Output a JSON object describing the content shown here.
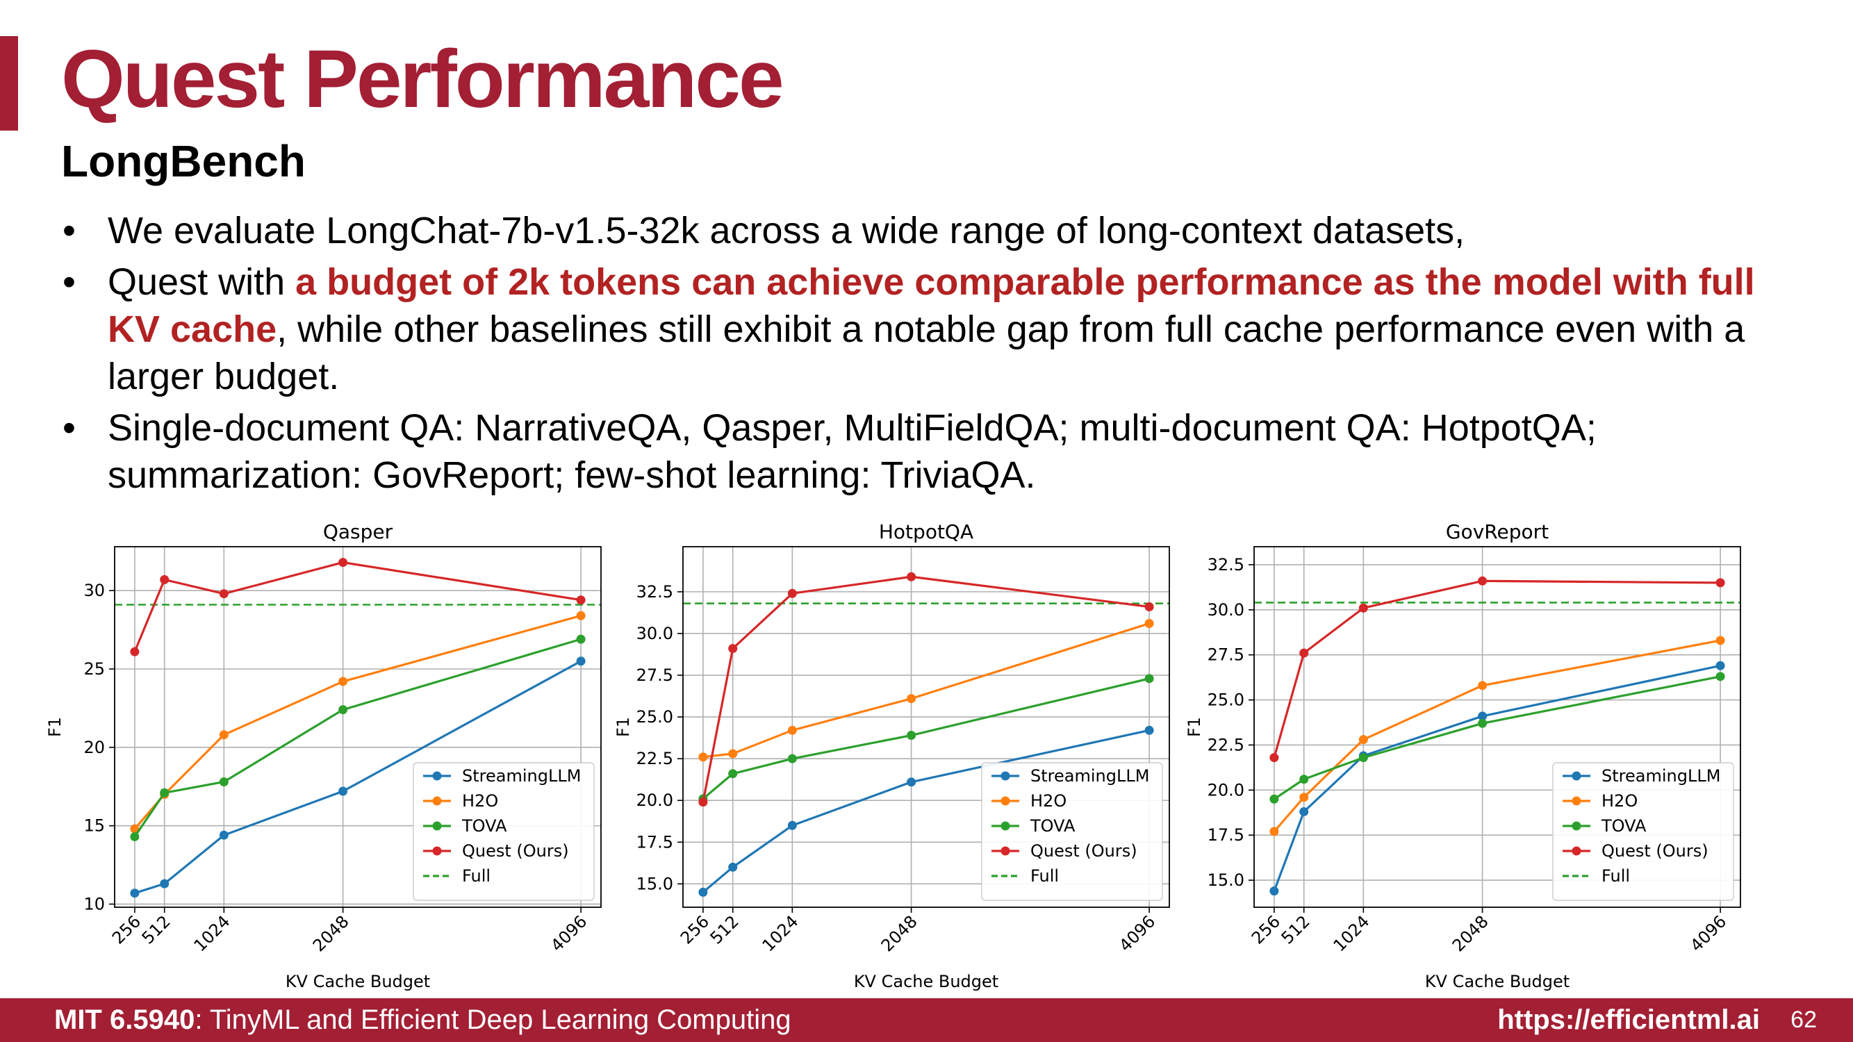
{
  "slide": {
    "title": "Quest Performance",
    "subtitle": "LongBench",
    "bullet_symbol": "•",
    "bullets": [
      {
        "before": "We evaluate LongChat-7b-v1.5-32k across a wide range of long-context datasets,",
        "highlight": "",
        "after": ""
      },
      {
        "before": "Quest with ",
        "highlight": "a budget of 2k tokens can achieve comparable performance as the model with full KV cache",
        "after": ", while other baselines still exhibit a notable gap from full cache performance even with a larger budget."
      },
      {
        "before": "Single-document QA: NarrativeQA, Qasper, MultiFieldQA; multi-document QA: HotpotQA; summarization: GovReport; few-shot learning: TriviaQA.",
        "highlight": "",
        "after": ""
      }
    ]
  },
  "footer": {
    "course_code": "MIT 6.5940",
    "course_name": ": TinyML and Efficient Deep Learning Computing",
    "url": "https://efficientml.ai",
    "page_number": "62"
  },
  "colors": {
    "brand": "#a31f34",
    "highlight": "#b22222",
    "StreamingLLM": "#1f77b4",
    "H2O": "#ff7f0e",
    "TOVA": "#2ca02c",
    "Quest": "#d62728",
    "Full": "#2ca02c"
  },
  "chart_data": [
    {
      "type": "line",
      "title": "Qasper",
      "xlabel": "KV Cache Budget",
      "ylabel": "F1",
      "x": [
        256,
        512,
        1024,
        2048,
        4096
      ],
      "x_tick_labels": [
        "256",
        "512",
        "1024",
        "2048",
        "4096"
      ],
      "ylim": [
        9.8,
        32.8
      ],
      "y_ticks": [
        10,
        15,
        20,
        25,
        30
      ],
      "y_tick_labels": [
        "10",
        "15",
        "20",
        "25",
        "30"
      ],
      "grid": true,
      "legend_position": "lower-right",
      "series": [
        {
          "name": "StreamingLLM",
          "values": [
            10.7,
            11.3,
            14.4,
            17.2,
            25.5
          ]
        },
        {
          "name": "H2O",
          "values": [
            14.8,
            17.0,
            20.8,
            24.2,
            28.4
          ]
        },
        {
          "name": "TOVA",
          "values": [
            14.3,
            17.1,
            17.8,
            22.4,
            26.9
          ]
        },
        {
          "name": "Quest (Ours)",
          "values": [
            26.1,
            30.7,
            29.8,
            31.8,
            29.4
          ]
        }
      ],
      "reference": {
        "name": "Full",
        "value": 29.1,
        "style": "dashed"
      }
    },
    {
      "type": "line",
      "title": "HotpotQA",
      "xlabel": "KV Cache Budget",
      "ylabel": "F1",
      "x": [
        256,
        512,
        1024,
        2048,
        4096
      ],
      "x_tick_labels": [
        "256",
        "512",
        "1024",
        "2048",
        "4096"
      ],
      "ylim": [
        13.6,
        35.2
      ],
      "y_ticks": [
        15.0,
        17.5,
        20.0,
        22.5,
        25.0,
        27.5,
        30.0,
        32.5
      ],
      "y_tick_labels": [
        "15.0",
        "17.5",
        "20.0",
        "22.5",
        "25.0",
        "27.5",
        "30.0",
        "32.5"
      ],
      "grid": true,
      "legend_position": "lower-right",
      "series": [
        {
          "name": "StreamingLLM",
          "values": [
            14.5,
            16.0,
            18.5,
            21.1,
            24.2
          ]
        },
        {
          "name": "H2O",
          "values": [
            22.6,
            22.8,
            24.2,
            26.1,
            30.6
          ]
        },
        {
          "name": "TOVA",
          "values": [
            20.1,
            21.6,
            22.5,
            23.9,
            27.3
          ]
        },
        {
          "name": "Quest (Ours)",
          "values": [
            19.9,
            29.1,
            32.4,
            33.4,
            31.6
          ]
        }
      ],
      "reference": {
        "name": "Full",
        "value": 31.8,
        "style": "dashed"
      }
    },
    {
      "type": "line",
      "title": "GovReport",
      "xlabel": "KV Cache Budget",
      "ylabel": "F1",
      "x": [
        256,
        512,
        1024,
        2048,
        4096
      ],
      "x_tick_labels": [
        "256",
        "512",
        "1024",
        "2048",
        "4096"
      ],
      "ylim": [
        13.5,
        33.5
      ],
      "y_ticks": [
        15.0,
        17.5,
        20.0,
        22.5,
        25.0,
        27.5,
        30.0,
        32.5
      ],
      "y_tick_labels": [
        "15.0",
        "17.5",
        "20.0",
        "22.5",
        "25.0",
        "27.5",
        "30.0",
        "32.5"
      ],
      "grid": true,
      "legend_position": "lower-right",
      "series": [
        {
          "name": "StreamingLLM",
          "values": [
            14.4,
            18.8,
            21.9,
            24.1,
            26.9
          ]
        },
        {
          "name": "H2O",
          "values": [
            17.7,
            19.6,
            22.8,
            25.8,
            28.3
          ]
        },
        {
          "name": "TOVA",
          "values": [
            19.5,
            20.6,
            21.8,
            23.7,
            26.3
          ]
        },
        {
          "name": "Quest (Ours)",
          "values": [
            21.8,
            27.6,
            30.1,
            31.6,
            31.5
          ]
        }
      ],
      "reference": {
        "name": "Full",
        "value": 30.4,
        "style": "dashed"
      }
    }
  ]
}
